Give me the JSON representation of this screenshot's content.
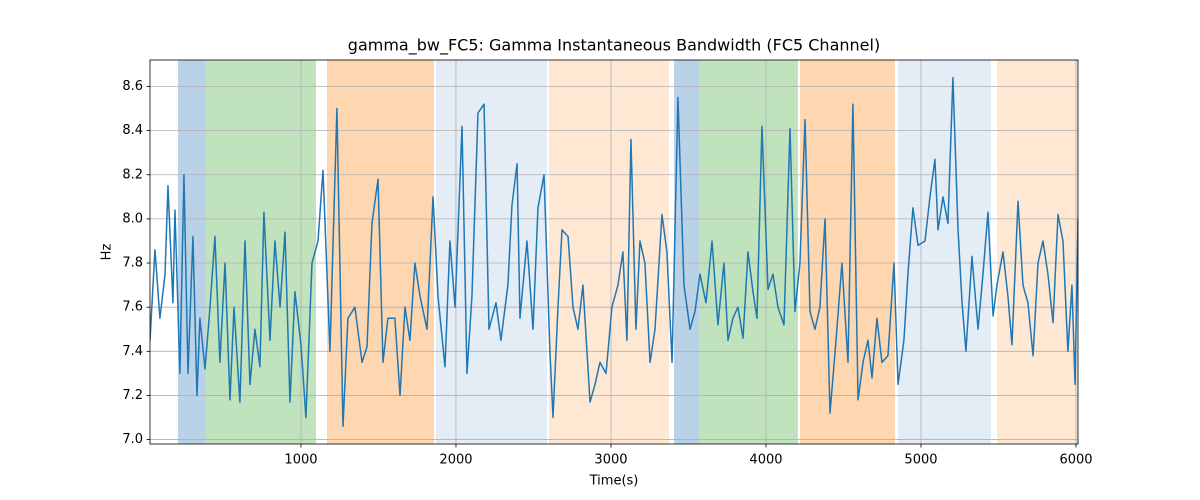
{
  "chart_data": {
    "type": "line",
    "title": "gamma_bw_FC5: Gamma Instantaneous Bandwidth (FC5 Channel)",
    "xlabel": "Time(s)",
    "ylabel": "Hz",
    "color": "#1f77b4",
    "x": [
      26,
      58,
      90,
      123,
      142,
      174,
      187,
      219,
      245,
      271,
      303,
      329,
      348,
      381,
      413,
      445,
      477,
      510,
      542,
      568,
      606,
      639,
      671,
      703,
      735,
      761,
      800,
      832,
      865,
      897,
      929,
      961,
      1000,
      1032,
      1071,
      1110,
      1142,
      1187,
      1232,
      1271,
      1303,
      1348,
      1394,
      1426,
      1458,
      1497,
      1529,
      1561,
      1606,
      1639,
      1671,
      1703,
      1735,
      1768,
      1813,
      1852,
      1884,
      1929,
      1961,
      1994,
      2039,
      2071,
      2103,
      2142,
      2181,
      2213,
      2258,
      2290,
      2335,
      2361,
      2394,
      2413,
      2458,
      2497,
      2529,
      2568,
      2606,
      2626,
      2658,
      2684,
      2723,
      2755,
      2787,
      2819,
      2865,
      2897,
      2929,
      2968,
      3006,
      3045,
      3077,
      3103,
      3129,
      3161,
      3187,
      3219,
      3252,
      3284,
      3329,
      3361,
      3394,
      3432,
      3471,
      3510,
      3542,
      3574,
      3613,
      3652,
      3690,
      3729,
      3755,
      3787,
      3819,
      3852,
      3884,
      3916,
      3942,
      3974,
      4013,
      4045,
      4077,
      4116,
      4155,
      4187,
      4219,
      4252,
      4284,
      4316,
      4348,
      4381,
      4413,
      4452,
      4490,
      4529,
      4561,
      4594,
      4626,
      4658,
      4684,
      4716,
      4748,
      4787,
      4826,
      4852,
      4890,
      4916,
      4948,
      4981,
      5026,
      5058,
      5090,
      5110,
      5142,
      5174,
      5206,
      5239,
      5265,
      5290,
      5329,
      5368,
      5400,
      5432,
      5465,
      5490,
      5529,
      5561,
      5587,
      5626,
      5658,
      5690,
      5723,
      5755,
      5787,
      5819,
      5852,
      5884,
      5916,
      5948,
      5974,
      5994,
      6013
    ],
    "values": [
      7.45,
      7.86,
      7.55,
      7.75,
      8.15,
      7.62,
      8.04,
      7.3,
      8.2,
      7.3,
      7.92,
      7.2,
      7.55,
      7.32,
      7.6,
      7.92,
      7.35,
      7.8,
      7.18,
      7.6,
      7.17,
      7.9,
      7.25,
      7.5,
      7.33,
      8.03,
      7.45,
      7.9,
      7.6,
      7.94,
      7.17,
      7.67,
      7.43,
      7.1,
      7.8,
      7.9,
      8.22,
      7.4,
      8.5,
      7.06,
      7.55,
      7.6,
      7.35,
      7.42,
      7.98,
      8.18,
      7.35,
      7.55,
      7.55,
      7.2,
      7.6,
      7.45,
      7.8,
      7.65,
      7.5,
      8.1,
      7.65,
      7.33,
      7.9,
      7.6,
      8.42,
      7.3,
      7.65,
      8.48,
      8.52,
      7.5,
      7.62,
      7.45,
      7.7,
      8.06,
      8.25,
      7.55,
      7.9,
      7.5,
      8.05,
      8.2,
      7.4,
      7.1,
      7.6,
      7.95,
      7.92,
      7.6,
      7.5,
      7.7,
      7.17,
      7.25,
      7.35,
      7.3,
      7.6,
      7.7,
      7.85,
      7.45,
      8.36,
      7.5,
      7.9,
      7.8,
      7.35,
      7.5,
      8.02,
      7.85,
      7.35,
      8.55,
      7.7,
      7.5,
      7.58,
      7.75,
      7.62,
      7.9,
      7.52,
      7.8,
      7.45,
      7.55,
      7.6,
      7.46,
      7.85,
      7.67,
      7.55,
      8.42,
      7.68,
      7.75,
      7.6,
      7.52,
      8.41,
      7.58,
      7.8,
      8.45,
      7.58,
      7.5,
      7.6,
      8.0,
      7.12,
      7.45,
      7.8,
      7.35,
      8.52,
      7.18,
      7.35,
      7.45,
      7.28,
      7.55,
      7.35,
      7.38,
      7.8,
      7.25,
      7.45,
      7.75,
      8.05,
      7.88,
      7.9,
      8.1,
      8.27,
      7.95,
      8.1,
      7.98,
      8.64,
      7.95,
      7.62,
      7.4,
      7.83,
      7.5,
      7.75,
      8.03,
      7.56,
      7.7,
      7.85,
      7.65,
      7.43,
      8.08,
      7.7,
      7.62,
      7.38,
      7.8,
      7.9,
      7.75,
      7.53,
      8.02,
      7.9,
      7.4,
      7.7,
      7.25,
      8.0
    ],
    "spans": [
      {
        "start": 206,
        "end": 387,
        "color": "#bad2e8"
      },
      {
        "start": 387,
        "end": 1097,
        "color": "#c0e3bd"
      },
      {
        "start": 1168,
        "end": 1858,
        "color": "#fed7b0"
      },
      {
        "start": 1871,
        "end": 2587,
        "color": "#e4ecf6"
      },
      {
        "start": 2600,
        "end": 3374,
        "color": "#fee8d4"
      },
      {
        "start": 3407,
        "end": 3568,
        "color": "#bad2e8"
      },
      {
        "start": 3568,
        "end": 4206,
        "color": "#c0e3bd"
      },
      {
        "start": 4219,
        "end": 4832,
        "color": "#fed7b0"
      },
      {
        "start": 4852,
        "end": 5452,
        "color": "#e4ecf6"
      },
      {
        "start": 5490,
        "end": 6013,
        "color": "#fee8d4"
      }
    ],
    "xlim": [
      26,
      6013
    ],
    "ylim": [
      6.98,
      8.72
    ],
    "xticks": [
      1000,
      2000,
      3000,
      4000,
      5000,
      6000
    ],
    "yticks": [
      {
        "value": 7,
        "label": "7.0"
      },
      7.2,
      7.4,
      7.6,
      7.8,
      {
        "value": 8,
        "label": "8.0"
      },
      8.2,
      8.4,
      8.6
    ],
    "grid": true
  }
}
